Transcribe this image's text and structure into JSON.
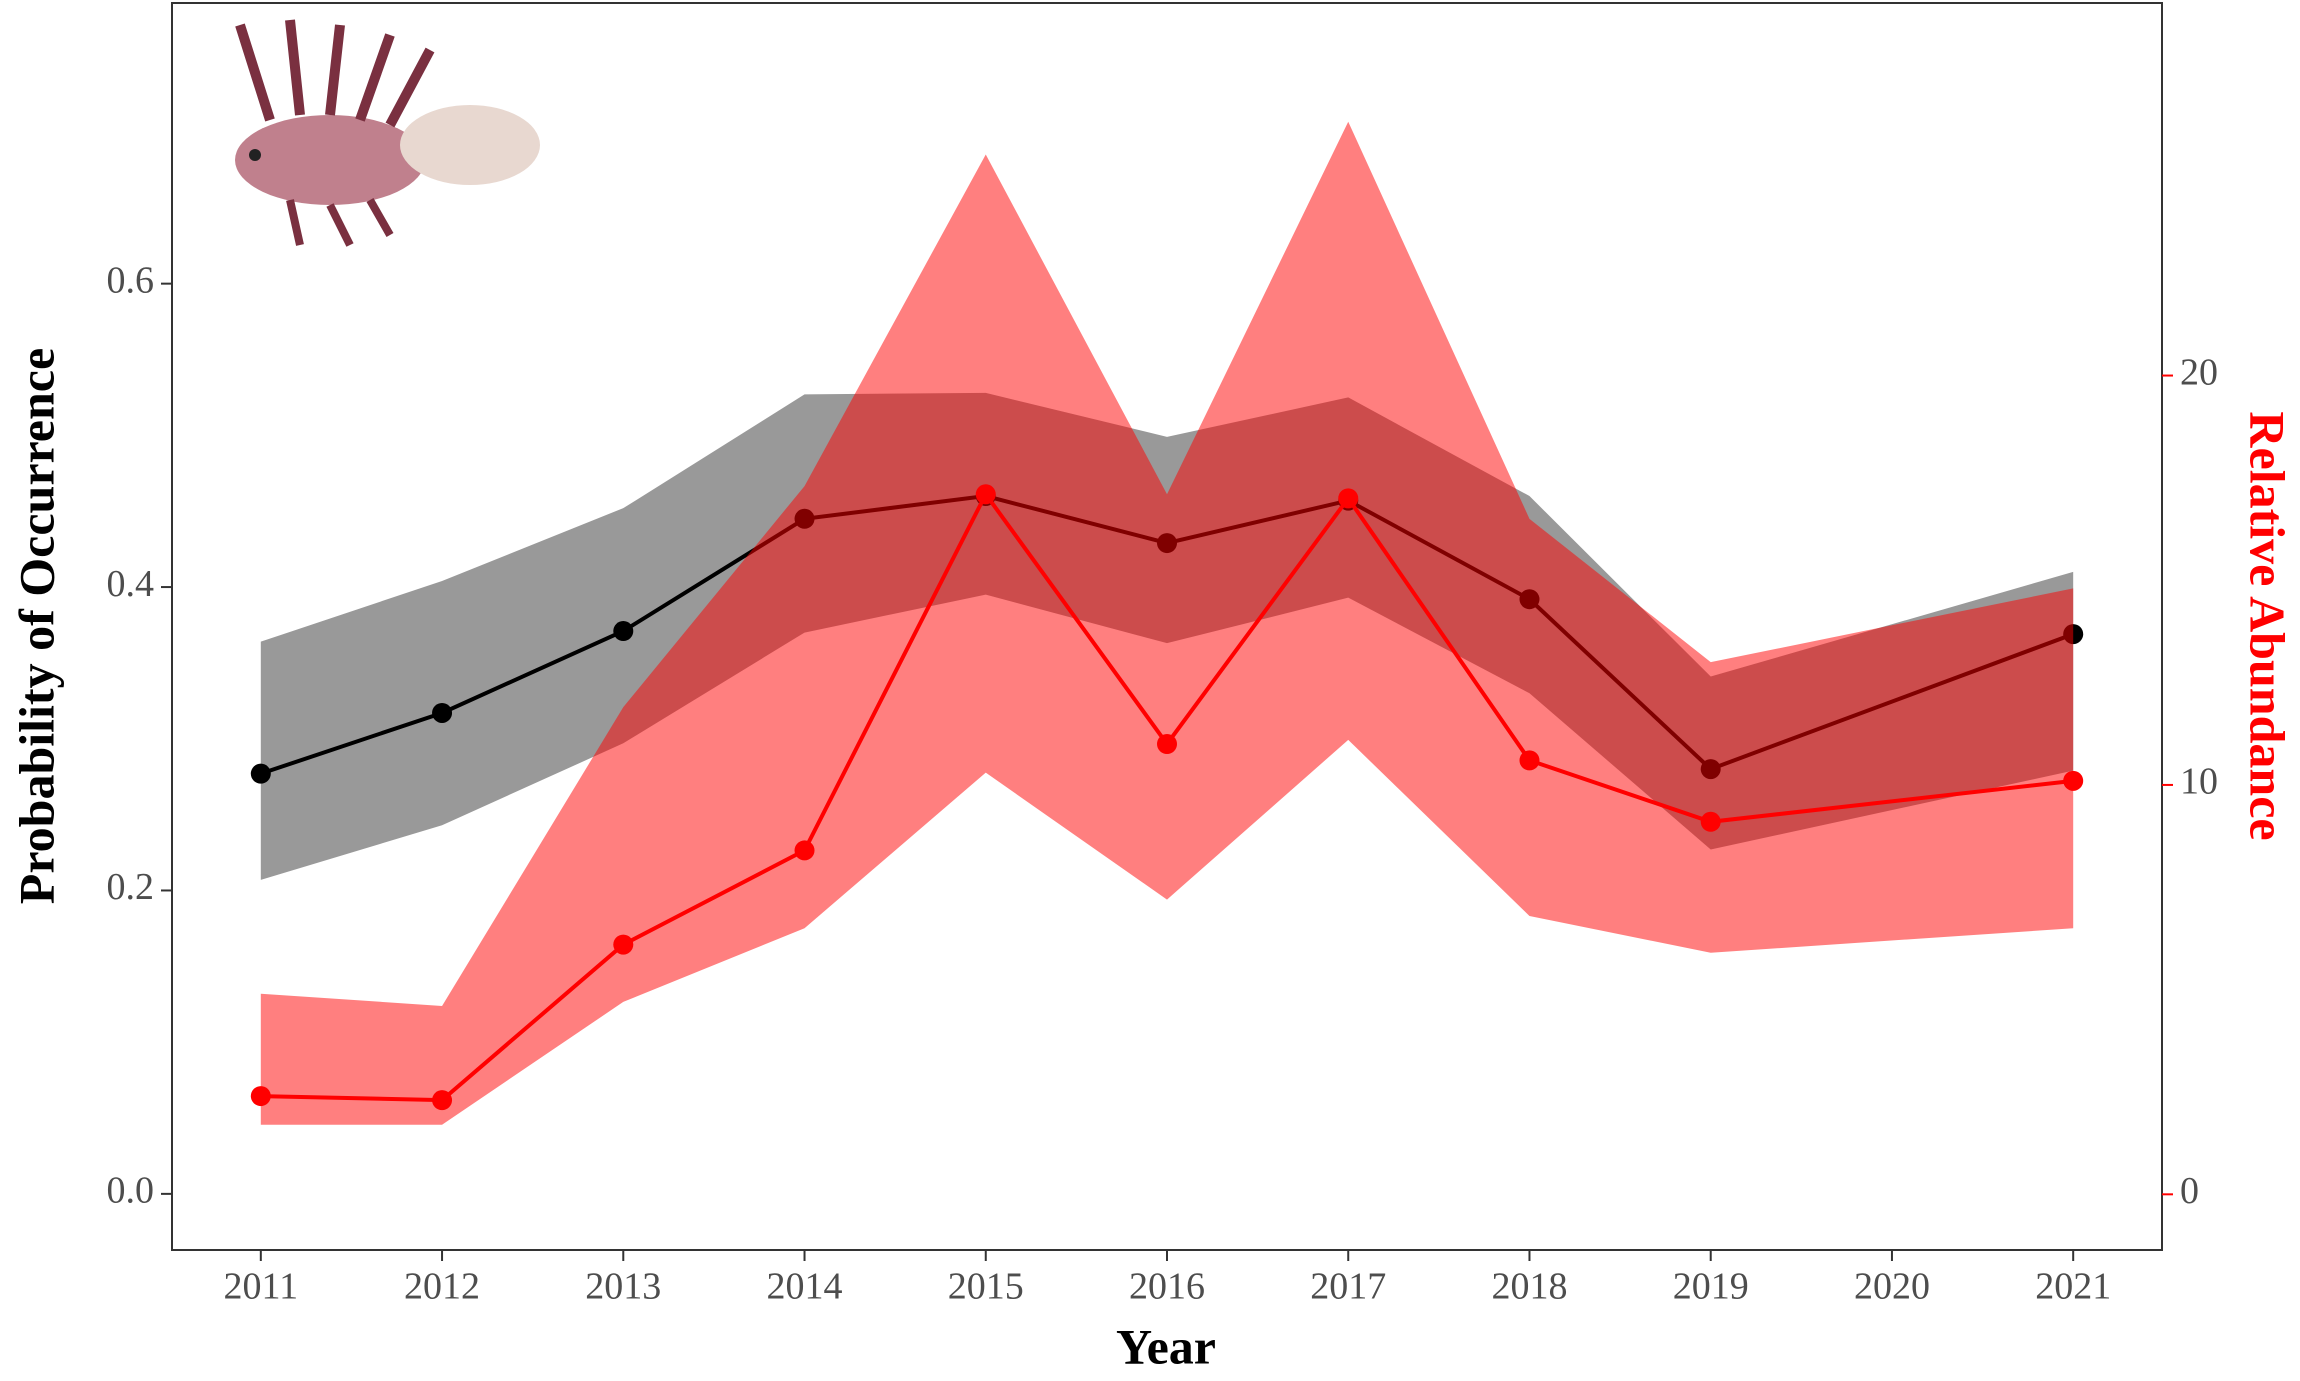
{
  "chart_data": {
    "type": "line",
    "x_label": "Year",
    "y_label": "Probability of Occurrence",
    "y2_label": "Relative Abundance",
    "x": [
      2011,
      2012,
      2013,
      2014,
      2015,
      2016,
      2017,
      2018,
      2019,
      2021
    ],
    "xlim": [
      2010.51,
      2021.49
    ],
    "xticks": [
      2011,
      2012,
      2013,
      2014,
      2015,
      2016,
      2017,
      2018,
      2019,
      2020,
      2021
    ],
    "ylim": [
      -0.037,
      0.785
    ],
    "yticks": [
      {
        "value": 0,
        "label": "0.0"
      },
      0.2,
      0.4,
      0.6
    ],
    "y2lim": [
      -1.36,
      29.1
    ],
    "y2ticks": [
      0,
      10,
      20
    ],
    "y2_color": "#ff0000",
    "series": [
      {
        "color": "#000000",
        "band_color": "#999999",
        "values": [
          0.277,
          0.317,
          0.371,
          0.445,
          0.46,
          0.429,
          0.457,
          0.392,
          0.28,
          0.369
        ],
        "upper": [
          0.364,
          0.404,
          0.452,
          0.527,
          0.528,
          0.499,
          0.525,
          0.46,
          0.341,
          0.41
        ],
        "lower": [
          0.207,
          0.243,
          0.297,
          0.37,
          0.395,
          0.363,
          0.393,
          0.33,
          0.227,
          0.279
        ]
      },
      {
        "color": "#ff0000",
        "band_color": "rgba(255,0,0,0.5)",
        "axis": "y2",
        "values": [
          2.4,
          2.3,
          6.1,
          8.4,
          17.1,
          11.0,
          17.0,
          10.6,
          9.1,
          10.1
        ],
        "upper": [
          4.9,
          4.6,
          11.9,
          17.3,
          25.4,
          17.1,
          26.2,
          16.5,
          13.0,
          14.8
        ],
        "lower": [
          1.7,
          1.7,
          4.7,
          6.5,
          10.3,
          7.2,
          11.1,
          6.8,
          5.9,
          6.5
        ]
      }
    ]
  }
}
